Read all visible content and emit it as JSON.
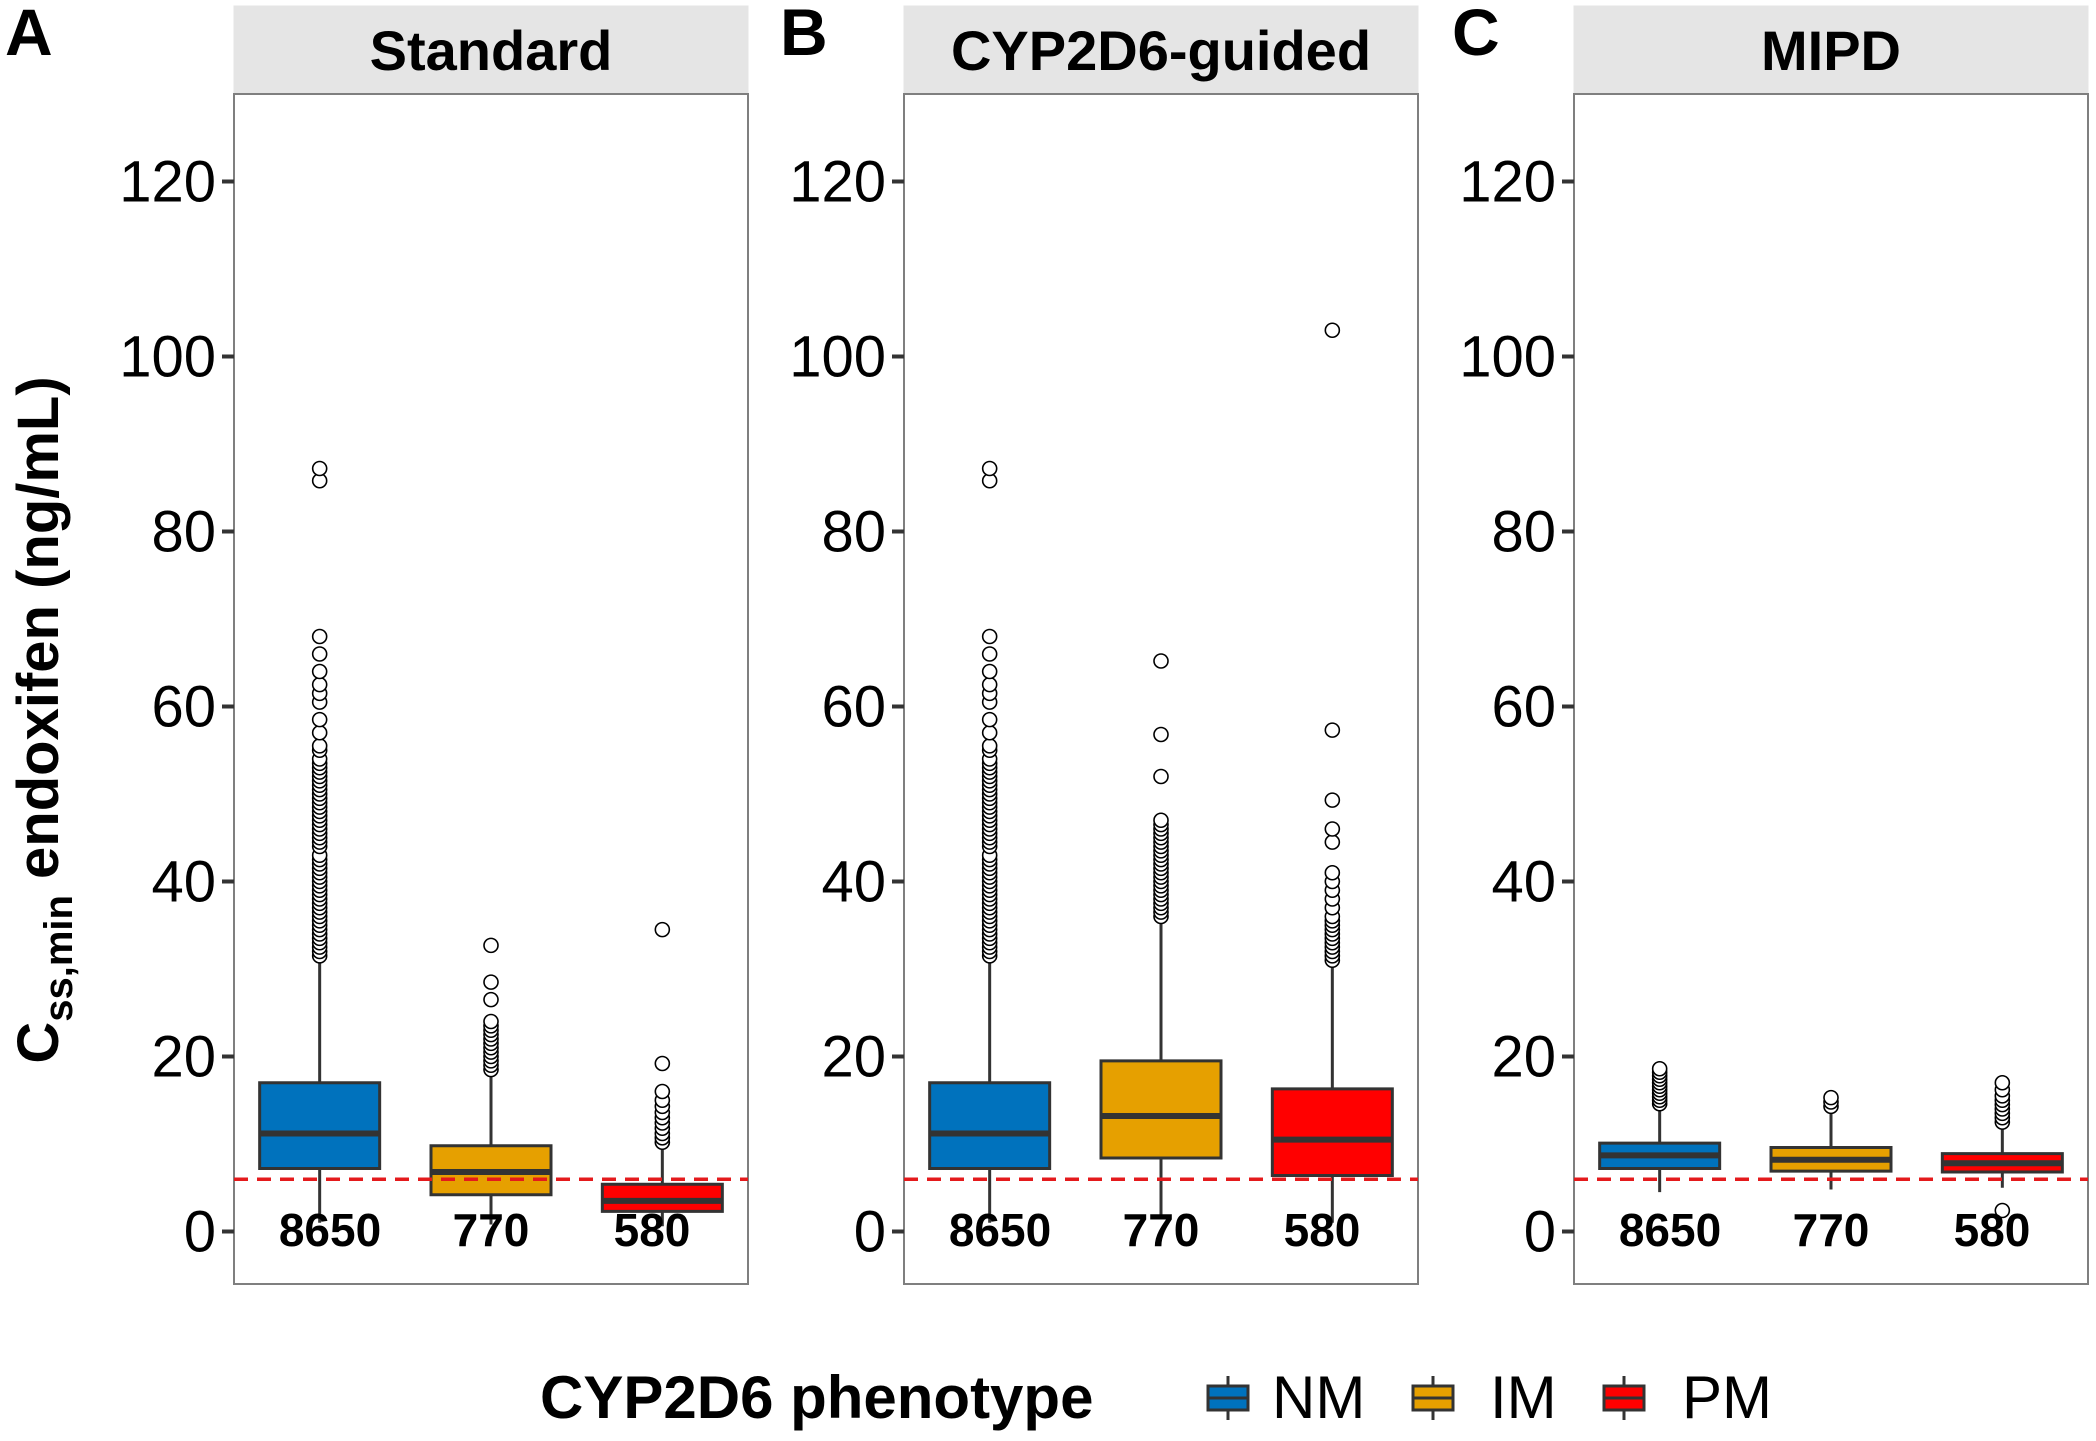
{
  "chart_data": {
    "type": "boxplot",
    "y_axis": {
      "label_main": "C",
      "label_subscript": "ss,min",
      "label_rest": " endoxifen (ng/mL)",
      "ylim": [
        -6,
        130
      ],
      "ticks": [
        0,
        20,
        40,
        60,
        80,
        100,
        120
      ]
    },
    "reference_line": {
      "value": 5.97,
      "color": "#E41A1C",
      "style": "dashed"
    },
    "legend": {
      "title": "CYP2D6 phenotype",
      "position": "bottom",
      "items": [
        {
          "label": "NM",
          "color": "#0072BD"
        },
        {
          "label": "IM",
          "color": "#E6A000"
        },
        {
          "label": "PM",
          "color": "#FF0000"
        }
      ]
    },
    "panels": [
      {
        "letter": "A",
        "title": "Standard",
        "boxes": [
          {
            "group": "NM",
            "count_label": "8650",
            "whisker_low": 1,
            "q1": 7.2,
            "median": 11.2,
            "q3": 17,
            "whisker_high": 31,
            "outliers": [
              31.5,
              32,
              32.5,
              33,
              33.5,
              34,
              34.5,
              35,
              35.5,
              36,
              36.5,
              37,
              37.5,
              38,
              38.5,
              39,
              39.5,
              40,
              40.5,
              41,
              41.5,
              42,
              42.5,
              43,
              44,
              44.5,
              45,
              45.5,
              46,
              46.5,
              47,
              47.5,
              48,
              48.5,
              49,
              49.5,
              50,
              50.5,
              51,
              51.5,
              52,
              52.5,
              53,
              53.5,
              54,
              55,
              55.5,
              57,
              58.5,
              60.5,
              61.5,
              62.5,
              64,
              66,
              68,
              85.8,
              87.2
            ]
          },
          {
            "group": "IM",
            "count_label": "770",
            "whisker_low": 0.8,
            "q1": 4.2,
            "median": 6.8,
            "q3": 9.8,
            "whisker_high": 18,
            "outliers": [
              18.5,
              19,
              19.5,
              20,
              20.5,
              21,
              21.5,
              22,
              22.5,
              23,
              23.5,
              24,
              26.5,
              28.5,
              32.7
            ]
          },
          {
            "group": "PM",
            "count_label": "580",
            "whisker_low": 0.6,
            "q1": 2.3,
            "median": 3.5,
            "q3": 5.4,
            "whisker_high": 9.8,
            "outliers": [
              10.2,
              10.7,
              11.2,
              11.8,
              12.4,
              13,
              13.6,
              14.3,
              15,
              16,
              19.2,
              34.5
            ]
          }
        ]
      },
      {
        "letter": "B",
        "title": "CYP2D6-guided",
        "boxes": [
          {
            "group": "NM",
            "count_label": "8650",
            "whisker_low": 1,
            "q1": 7.2,
            "median": 11.2,
            "q3": 17,
            "whisker_high": 31,
            "outliers": [
              31.5,
              32,
              32.5,
              33,
              33.5,
              34,
              34.5,
              35,
              35.5,
              36,
              36.5,
              37,
              37.5,
              38,
              38.5,
              39,
              39.5,
              40,
              40.5,
              41,
              41.5,
              42,
              42.5,
              43,
              44,
              44.5,
              45,
              45.5,
              46,
              46.5,
              47,
              47.5,
              48,
              48.5,
              49,
              49.5,
              50,
              50.5,
              51,
              51.5,
              52,
              52.5,
              53,
              53.5,
              54,
              55,
              55.5,
              57,
              58.5,
              60.5,
              61.5,
              62.5,
              64,
              66,
              68,
              85.8,
              87.2
            ]
          },
          {
            "group": "IM",
            "count_label": "770",
            "whisker_low": 1.5,
            "q1": 8.4,
            "median": 13.2,
            "q3": 19.5,
            "whisker_high": 35.5,
            "outliers": [
              36,
              36.5,
              37,
              37.5,
              38,
              38.5,
              39,
              39.5,
              40,
              40.5,
              41,
              41.5,
              42,
              42.5,
              43,
              43.5,
              44,
              44.5,
              45,
              45.5,
              46,
              46.5,
              47,
              52,
              56.8,
              65.2
            ]
          },
          {
            "group": "PM",
            "count_label": "580",
            "whisker_low": 1,
            "q1": 6.4,
            "median": 10.5,
            "q3": 16.3,
            "whisker_high": 30.5,
            "outliers": [
              31,
              31.5,
              32,
              32.5,
              33,
              33.5,
              34,
              34.5,
              35,
              35.5,
              36,
              37,
              38,
              39,
              40,
              41,
              44.5,
              46,
              49.3,
              57.3,
              103
            ]
          }
        ]
      },
      {
        "letter": "C",
        "title": "MIPD",
        "boxes": [
          {
            "group": "NM",
            "count_label": "8650",
            "whisker_low": 4.5,
            "q1": 7.2,
            "median": 8.7,
            "q3": 10.1,
            "whisker_high": 14.2,
            "outliers": [
              14.6,
              15,
              15.4,
              15.8,
              16.2,
              16.6,
              17,
              17.4,
              17.8,
              18.2,
              18.6
            ]
          },
          {
            "group": "IM",
            "count_label": "770",
            "whisker_low": 4.8,
            "q1": 6.9,
            "median": 8.2,
            "q3": 9.6,
            "whisker_high": 13.8,
            "outliers": [
              14.3,
              14.8,
              15.3
            ]
          },
          {
            "group": "PM",
            "count_label": "580",
            "whisker_low": 5,
            "q1": 6.8,
            "median": 7.8,
            "q3": 8.9,
            "whisker_high": 12,
            "outliers": [
              2.4,
              12.5,
              13,
              13.5,
              14,
              14.5,
              15,
              15.5,
              16.2,
              17
            ]
          }
        ]
      }
    ]
  }
}
